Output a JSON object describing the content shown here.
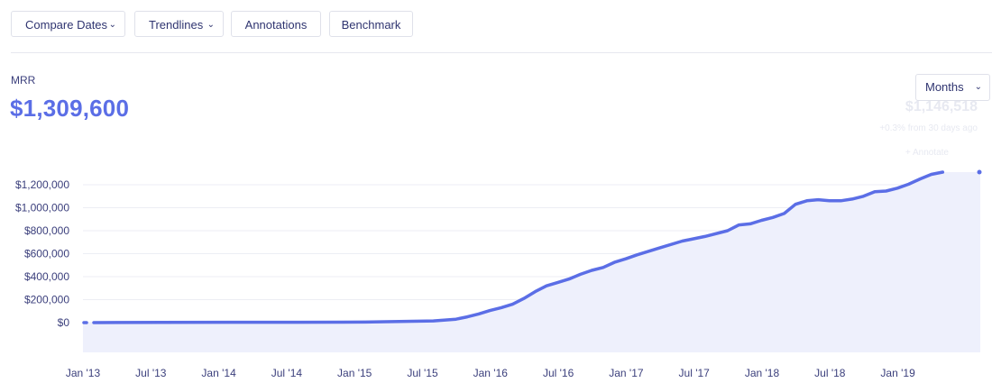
{
  "toolbar": {
    "compare_dates": "Compare Dates",
    "trendlines": "Trendlines",
    "annotations": "Annotations",
    "benchmark": "Benchmark"
  },
  "metric": {
    "label": "MRR",
    "value": "$1,309,600"
  },
  "interval_select": {
    "selected": "Months"
  },
  "ghost_tooltip": {
    "value": "$1,146,518",
    "change": "+0.3% from 30 days ago",
    "annotate": "+ Annotate"
  },
  "colors": {
    "line": "#5b6ee6",
    "area": "#eef0fc",
    "grid": "#eceef4",
    "text": "#3b3f7c"
  },
  "chart_data": {
    "type": "area",
    "title": "",
    "xlabel": "",
    "ylabel": "",
    "ylim": [
      0,
      1300000
    ],
    "y_ticks": [
      0,
      200000,
      400000,
      600000,
      800000,
      1000000,
      1200000
    ],
    "y_tick_labels": [
      "$0",
      "$200,000",
      "$400,000",
      "$600,000",
      "$800,000",
      "$1,000,000",
      "$1,200,000"
    ],
    "x_tick_labels": [
      "Jan '13",
      "Jul '13",
      "Jan '14",
      "Jul '14",
      "Jan '15",
      "Jul '15",
      "Jan '16",
      "Jul '16",
      "Jan '17",
      "Jul '17",
      "Jan '18",
      "Jul '18",
      "Jan '19"
    ],
    "x_tick_months": [
      0,
      6,
      12,
      18,
      24,
      30,
      36,
      42,
      48,
      54,
      60,
      66,
      72
    ],
    "grid": true,
    "legend": "none",
    "series": [
      {
        "x_months": [
          0,
          6,
          12,
          18,
          24,
          30,
          32,
          33,
          34,
          35,
          36,
          37,
          38,
          39,
          40,
          41,
          42,
          43,
          44,
          45,
          46,
          47,
          48,
          50,
          52,
          54,
          56,
          57,
          58,
          59,
          60,
          61,
          62,
          63,
          64,
          65,
          66,
          67,
          68,
          69,
          70,
          71,
          72,
          73,
          74,
          75
        ],
        "values": [
          0,
          2000,
          3000,
          3000,
          5000,
          15000,
          30000,
          50000,
          75000,
          105000,
          130000,
          160000,
          210000,
          270000,
          320000,
          350000,
          380000,
          420000,
          455000,
          480000,
          525000,
          555000,
          590000,
          650000,
          710000,
          750000,
          800000,
          850000,
          860000,
          890000,
          915000,
          950000,
          1030000,
          1060000,
          1070000,
          1060000,
          1060000,
          1075000,
          1100000,
          1140000,
          1145000,
          1170000,
          1205000,
          1250000,
          1290000,
          1309600
        ]
      }
    ]
  }
}
